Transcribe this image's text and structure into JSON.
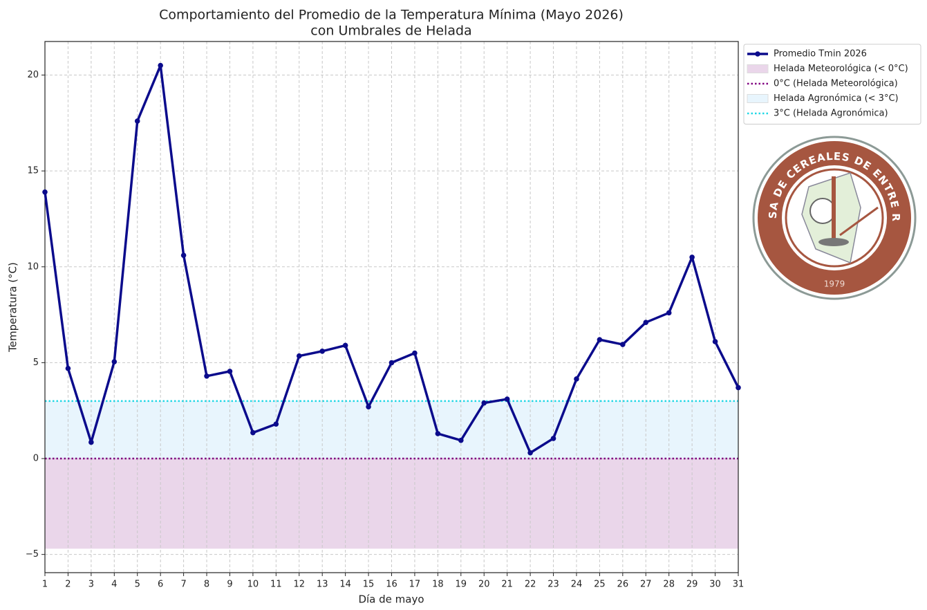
{
  "chart_data": {
    "type": "line",
    "title": [
      "Comportamiento del Promedio de la Temperatura Mínima (Mayo 2026)",
      "con Umbrales de Helada"
    ],
    "xlabel": "Día de mayo",
    "ylabel": "Temperatura (°C)",
    "x": [
      1,
      2,
      3,
      4,
      5,
      6,
      7,
      8,
      9,
      10,
      11,
      12,
      13,
      14,
      15,
      16,
      17,
      18,
      19,
      20,
      21,
      22,
      23,
      24,
      25,
      26,
      27,
      28,
      29,
      30,
      31
    ],
    "series": [
      {
        "name": "Promedio Tmin 2026",
        "color": "#0b0b8c",
        "values": [
          13.9,
          4.7,
          0.85,
          5.05,
          17.6,
          20.5,
          10.6,
          4.3,
          4.55,
          1.35,
          1.8,
          5.35,
          5.6,
          5.9,
          2.7,
          5.0,
          5.5,
          1.3,
          0.95,
          2.9,
          3.1,
          0.3,
          1.05,
          4.15,
          6.2,
          5.95,
          7.1,
          7.6,
          10.5,
          6.1,
          3.7
        ]
      }
    ],
    "bands": [
      {
        "name": "Helada Meteorológica (< 0°C)",
        "range": [
          -4.7,
          0
        ],
        "color": "#ead6ea"
      },
      {
        "name": "Helada Agronómica (< 3°C)",
        "range": [
          0,
          3
        ],
        "color": "#e8f5fd"
      }
    ],
    "thresholds": [
      {
        "name": "0°C (Helada Meteorológica)",
        "value": 0,
        "color": "#800080"
      },
      {
        "name": "3°C (Helada Agronómica)",
        "value": 3,
        "color": "#22d8e6"
      }
    ],
    "xlim": [
      1,
      31
    ],
    "xticks": [
      1,
      2,
      3,
      4,
      5,
      6,
      7,
      8,
      9,
      10,
      11,
      12,
      13,
      14,
      15,
      16,
      17,
      18,
      19,
      20,
      21,
      22,
      23,
      24,
      25,
      26,
      27,
      28,
      29,
      30,
      31
    ],
    "ylim": [
      -5.95,
      21.75
    ],
    "yticks": [
      {
        "value": -5,
        "label": "−5"
      },
      0,
      5,
      10,
      15,
      20
    ],
    "grid": true,
    "legend": "upper right"
  },
  "logo": {
    "text": "BOLSA DE CEREALES DE ENTRE RÍOS",
    "year": "1979"
  }
}
